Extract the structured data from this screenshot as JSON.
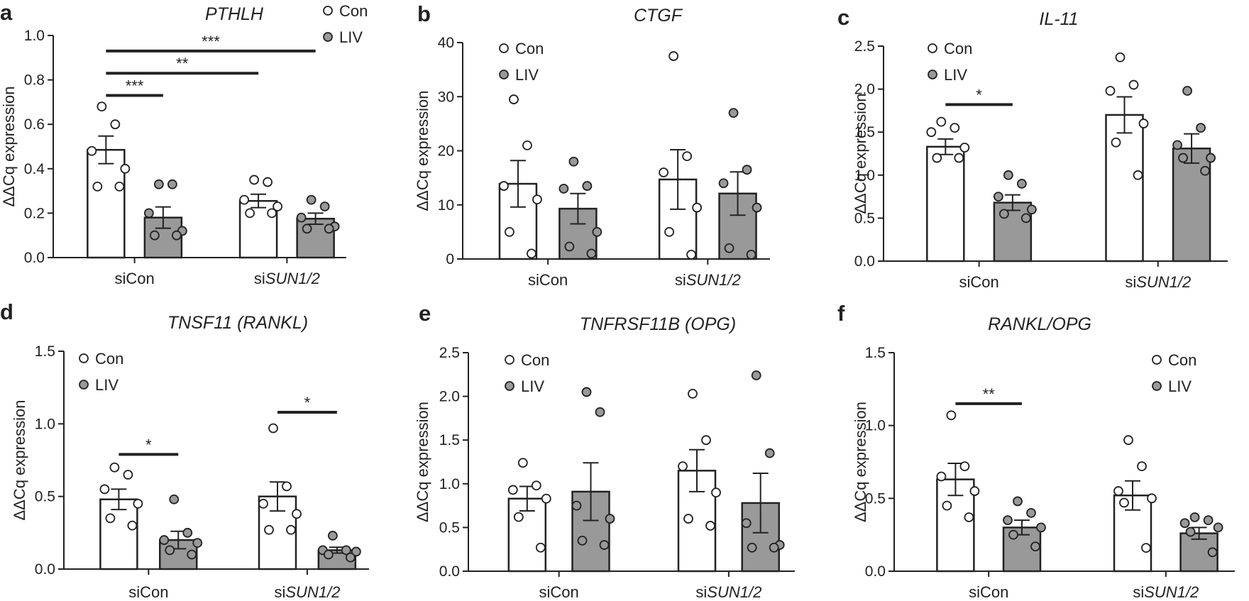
{
  "colors": {
    "con": "#ffffff",
    "liv": "#999999",
    "stroke": "#222222"
  },
  "chart_data": [
    {
      "panel": "a",
      "title": "PTHLH",
      "type": "bar",
      "ylabel": "ΔΔCq expression",
      "ylim": [
        0,
        1.0
      ],
      "yticks": [
        "0.0",
        "0.2",
        "0.4",
        "0.6",
        "0.8",
        "1.0"
      ],
      "ytick_values": [
        0,
        0.2,
        0.4,
        0.6,
        0.8,
        1.0
      ],
      "categories": [
        {
          "prefix": "si",
          "name": "Con",
          "italic": false
        },
        {
          "prefix": "si",
          "name": "SUN1/2",
          "italic": true
        }
      ],
      "legend": {
        "labels": [
          "Con",
          "LIV"
        ],
        "position": "top-right"
      },
      "series": [
        {
          "name": "Con",
          "means": [
            0.485,
            0.255
          ],
          "sem": [
            0.062,
            0.03
          ],
          "points": [
            [
              0.68,
              0.6,
              0.48,
              0.4,
              0.32,
              0.32
            ],
            [
              0.35,
              0.34,
              0.26,
              0.23,
              0.2,
              0.2
            ]
          ]
        },
        {
          "name": "LIV",
          "means": [
            0.18,
            0.175
          ],
          "sem": [
            0.048,
            0.025
          ],
          "points": [
            [
              0.33,
              0.33,
              0.2,
              0.12,
              0.1,
              0.1
            ],
            [
              0.26,
              0.23,
              0.18,
              0.14,
              0.13,
              0.13
            ]
          ]
        }
      ],
      "significance": [
        {
          "from": [
            0,
            0
          ],
          "to": [
            0,
            1
          ],
          "label": "***",
          "y": 0.73
        },
        {
          "from": [
            0,
            0
          ],
          "to": [
            1,
            0
          ],
          "label": "**",
          "y": 0.83
        },
        {
          "from": [
            0,
            0
          ],
          "to": [
            1,
            1
          ],
          "label": "***",
          "y": 0.93
        }
      ]
    },
    {
      "panel": "b",
      "title": "CTGF",
      "type": "bar",
      "ylabel": "ΔΔCq expression",
      "ylim": [
        0,
        40
      ],
      "yticks": [
        "0",
        "10",
        "20",
        "30",
        "40"
      ],
      "ytick_values": [
        0,
        10,
        20,
        30,
        40
      ],
      "categories": [
        {
          "prefix": "si",
          "name": "Con",
          "italic": false
        },
        {
          "prefix": "si",
          "name": "SUN1/2",
          "italic": true
        }
      ],
      "legend": {
        "labels": [
          "Con",
          "LIV"
        ],
        "position": "top-left"
      },
      "series": [
        {
          "name": "Con",
          "means": [
            13.9,
            14.7
          ],
          "sem": [
            4.3,
            5.5
          ],
          "points": [
            [
              29.5,
              21,
              13.5,
              11,
              5,
              1
            ],
            [
              37.5,
              19,
              16,
              9.5,
              5,
              0.8
            ]
          ]
        },
        {
          "name": "LIV",
          "means": [
            9.3,
            12.1
          ],
          "sem": [
            2.8,
            4.0
          ],
          "points": [
            [
              18,
              13.5,
              13,
              5,
              2.3,
              1
            ],
            [
              27,
              16.5,
              14,
              9.5,
              2,
              0.8
            ]
          ]
        }
      ],
      "significance": []
    },
    {
      "panel": "c",
      "title": "IL-11",
      "type": "bar",
      "ylabel": "ΔΔCq expression",
      "ylim": [
        0,
        2.5
      ],
      "yticks": [
        "0.0",
        "0.5",
        "1.0",
        "1.5",
        "2.0",
        "2.5"
      ],
      "ytick_values": [
        0,
        0.5,
        1.0,
        1.5,
        2.0,
        2.5
      ],
      "categories": [
        {
          "prefix": "si",
          "name": "Con",
          "italic": false
        },
        {
          "prefix": "si",
          "name": "SUN1/2",
          "italic": true
        }
      ],
      "legend": {
        "labels": [
          "Con",
          "LIV"
        ],
        "position": "top-left"
      },
      "series": [
        {
          "name": "Con",
          "means": [
            1.33,
            1.7
          ],
          "sem": [
            0.09,
            0.21
          ],
          "points": [
            [
              1.62,
              1.55,
              1.5,
              1.32,
              1.2,
              1.2
            ],
            [
              2.37,
              2.05,
              1.98,
              1.6,
              1.38,
              1.0
            ]
          ]
        },
        {
          "name": "LIV",
          "means": [
            0.68,
            1.31
          ],
          "sem": [
            0.09,
            0.17
          ],
          "points": [
            [
              1.0,
              0.9,
              0.75,
              0.6,
              0.55,
              0.5
            ],
            [
              1.98,
              1.55,
              1.35,
              1.2,
              1.2,
              1.05
            ]
          ]
        }
      ],
      "significance": [
        {
          "from": [
            0,
            0
          ],
          "to": [
            0,
            1
          ],
          "label": "*",
          "y": 1.82
        }
      ]
    },
    {
      "panel": "d",
      "title": "TNSF11 (RANKL)",
      "type": "bar",
      "ylabel": "ΔΔCq expression",
      "ylim": [
        0,
        1.5
      ],
      "yticks": [
        "0.0",
        "0.5",
        "1.0",
        "1.5"
      ],
      "ytick_values": [
        0,
        0.5,
        1.0,
        1.5
      ],
      "categories": [
        {
          "prefix": "si",
          "name": "Con",
          "italic": false
        },
        {
          "prefix": "si",
          "name": "SUN1/2",
          "italic": true
        }
      ],
      "legend": {
        "labels": [
          "Con",
          "LIV"
        ],
        "position": "top-left"
      },
      "series": [
        {
          "name": "Con",
          "means": [
            0.48,
            0.5
          ],
          "sem": [
            0.07,
            0.1
          ],
          "points": [
            [
              0.7,
              0.65,
              0.55,
              0.45,
              0.35,
              0.3
            ],
            [
              0.97,
              0.57,
              0.45,
              0.38,
              0.27,
              0.27
            ]
          ]
        },
        {
          "name": "LIV",
          "means": [
            0.2,
            0.13
          ],
          "sem": [
            0.06,
            0.02
          ],
          "points": [
            [
              0.48,
              0.25,
              0.2,
              0.18,
              0.13,
              0.1
            ],
            [
              0.23,
              0.13,
              0.13,
              0.12,
              0.1,
              0.08
            ]
          ]
        }
      ],
      "significance": [
        {
          "from": [
            0,
            0
          ],
          "to": [
            0,
            1
          ],
          "label": "*",
          "y": 0.79
        },
        {
          "from": [
            1,
            0
          ],
          "to": [
            1,
            1
          ],
          "label": "*",
          "y": 1.08
        }
      ]
    },
    {
      "panel": "e",
      "title": "TNFRSF11B (OPG)",
      "type": "bar",
      "ylabel": "ΔΔCq expression",
      "ylim": [
        0,
        2.5
      ],
      "yticks": [
        "0.0",
        "0.5",
        "1.0",
        "1.5",
        "2.0",
        "2.5"
      ],
      "ytick_values": [
        0,
        0.5,
        1.0,
        1.5,
        2.0,
        2.5
      ],
      "categories": [
        {
          "prefix": "si",
          "name": "Con",
          "italic": false
        },
        {
          "prefix": "si",
          "name": "SUN1/2",
          "italic": true
        }
      ],
      "legend": {
        "labels": [
          "Con",
          "LIV"
        ],
        "position": "top-left"
      },
      "series": [
        {
          "name": "Con",
          "means": [
            0.83,
            1.15
          ],
          "sem": [
            0.14,
            0.24
          ],
          "points": [
            [
              1.24,
              0.98,
              0.93,
              0.83,
              0.62,
              0.27
            ],
            [
              2.03,
              1.5,
              1.2,
              0.9,
              0.6,
              0.52
            ]
          ]
        },
        {
          "name": "LIV",
          "means": [
            0.91,
            0.78
          ],
          "sem": [
            0.33,
            0.34
          ],
          "points": [
            [
              2.05,
              1.82,
              0.75,
              0.6,
              0.35,
              0.3
            ],
            [
              2.24,
              1.35,
              0.55,
              0.3,
              0.27,
              0.27
            ]
          ]
        }
      ],
      "significance": []
    },
    {
      "panel": "f",
      "title": "RANKL/OPG",
      "type": "bar",
      "ylabel": "ΔΔCq expression",
      "ylim": [
        0,
        1.5
      ],
      "yticks": [
        "0.0",
        "0.5",
        "1.0",
        "1.5"
      ],
      "ytick_values": [
        0,
        0.5,
        1.0,
        1.5
      ],
      "categories": [
        {
          "prefix": "si",
          "name": "Con",
          "italic": false
        },
        {
          "prefix": "si",
          "name": "SUN1/2",
          "italic": true
        }
      ],
      "legend": {
        "labels": [
          "Con",
          "LIV"
        ],
        "position": "top-right"
      },
      "series": [
        {
          "name": "Con",
          "means": [
            0.63,
            0.52
          ],
          "sem": [
            0.11,
            0.1
          ],
          "points": [
            [
              1.07,
              0.72,
              0.65,
              0.55,
              0.45,
              0.37
            ],
            [
              0.9,
              0.72,
              0.55,
              0.5,
              0.47,
              0.16
            ]
          ]
        },
        {
          "name": "LIV",
          "means": [
            0.3,
            0.26
          ],
          "sem": [
            0.05,
            0.04
          ],
          "points": [
            [
              0.48,
              0.4,
              0.35,
              0.3,
              0.25,
              0.17
            ],
            [
              0.37,
              0.35,
              0.33,
              0.3,
              0.27,
              0.13
            ]
          ]
        }
      ],
      "significance": [
        {
          "from": [
            0,
            0
          ],
          "to": [
            0,
            1
          ],
          "label": "**",
          "y": 1.15
        }
      ]
    }
  ]
}
